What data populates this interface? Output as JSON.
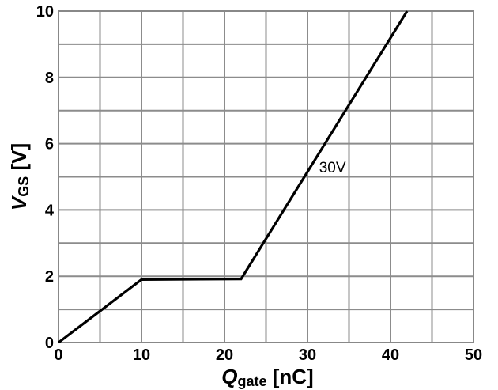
{
  "chart_data": {
    "type": "line",
    "x_axis": {
      "symbol": "Q",
      "subscript": "gate",
      "unit": " [nC]",
      "range": [
        0,
        50
      ],
      "ticks": [
        "0",
        "10",
        "20",
        "30",
        "40",
        "50"
      ]
    },
    "y_axis": {
      "symbol": "V",
      "subscript": "GS",
      "unit": " [V]",
      "range": [
        0,
        10
      ],
      "ticks": [
        "0",
        "2",
        "4",
        "6",
        "8",
        "10"
      ]
    },
    "grid": {
      "x_step": 5,
      "y_step": 1,
      "visible": true
    },
    "series": [
      {
        "name": "30V",
        "color": "#000000",
        "points": [
          {
            "x": 0,
            "y": 0
          },
          {
            "x": 10,
            "y": 1.9
          },
          {
            "x": 22,
            "y": 1.92
          },
          {
            "x": 42,
            "y": 10
          }
        ]
      }
    ],
    "annotations": [
      {
        "text": "30V",
        "x": 31.4,
        "y": 5.3
      }
    ]
  }
}
